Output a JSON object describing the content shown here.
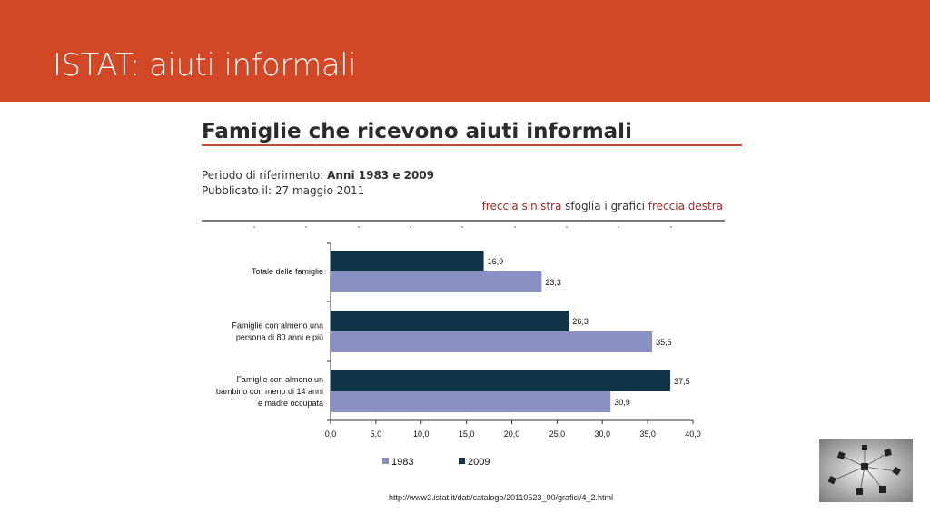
{
  "slide": {
    "title": "ISTAT: aiuti informali"
  },
  "figure": {
    "title": "Famiglie che ricevono aiuti informali",
    "period_label": "Periodo di riferimento: ",
    "period_value": "Anni 1983 e 2009",
    "published": "Pubblicato il: 27 maggio 2011",
    "nav_left": "freccia sinistra",
    "nav_middle": " sfoglia i grafici ",
    "nav_right": "freccia destra"
  },
  "chart_data": {
    "type": "bar",
    "orientation": "horizontal",
    "categories": [
      "Totale delle famiglie",
      "Famiglie con almeno una persona di 80 anni e più",
      "Famiglie con almeno un bambino con meno di 14 anni e madre occupata"
    ],
    "category_lines": [
      [
        "Totale delle famiglie"
      ],
      [
        "Famiglie con almeno una",
        "persona di 80 anni e più"
      ],
      [
        "Famiglie con almeno un",
        "bambino con meno di 14 anni",
        "e madre occupata"
      ]
    ],
    "series": [
      {
        "name": "2009",
        "color": "#0f3347",
        "values": [
          16.9,
          26.3,
          37.5
        ],
        "labels": [
          "16,9",
          "26,3",
          "37,5"
        ]
      },
      {
        "name": "1983",
        "color": "#8a8fc4",
        "values": [
          23.3,
          35.5,
          30.9
        ],
        "labels": [
          "23,3",
          "35,5",
          "30,9"
        ]
      }
    ],
    "xlim": [
      0,
      40
    ],
    "xticks": [
      0,
      5,
      10,
      15,
      20,
      25,
      30,
      35,
      40
    ],
    "xtick_labels": [
      "0,0",
      "5,0",
      "10,0",
      "15,0",
      "20,0",
      "25,0",
      "30,0",
      "35,0",
      "40,0"
    ],
    "legend": {
      "placement": "bottom",
      "order": [
        "1983",
        "2009"
      ]
    },
    "grid": false
  },
  "footer": {
    "source": "http://www3.istat.it/dati/catalogo/20110523_00/grafici/4_2.html"
  },
  "thumbnail": {
    "icon": "network-molecule-icon"
  }
}
